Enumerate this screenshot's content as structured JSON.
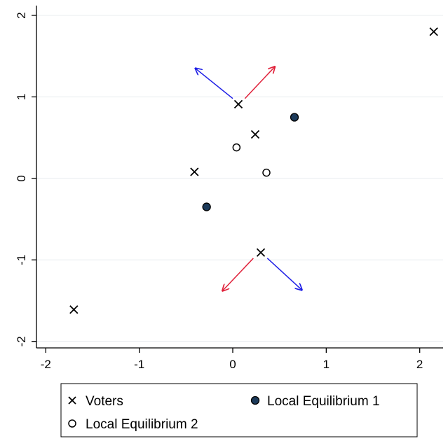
{
  "chart_data": {
    "type": "scatter",
    "title": "",
    "xlabel": "",
    "ylabel": "",
    "xlim": [
      -2.1,
      2.25
    ],
    "ylim": [
      -2.08,
      2.12
    ],
    "xticks": [
      -2,
      -1,
      0,
      1,
      2
    ],
    "yticks": [
      -2,
      -1,
      0,
      1,
      2
    ],
    "grid": "horizontal",
    "legend_position": "bottom",
    "series": [
      {
        "name": "Voters",
        "marker": "x",
        "color": "#000000",
        "points": [
          {
            "x": -1.7,
            "y": -1.61
          },
          {
            "x": -0.41,
            "y": 0.08
          },
          {
            "x": 0.06,
            "y": 0.91
          },
          {
            "x": 0.24,
            "y": 0.54
          },
          {
            "x": 0.3,
            "y": -0.91
          },
          {
            "x": 2.15,
            "y": 1.8
          }
        ]
      },
      {
        "name": "Local Equilibrium 1",
        "marker": "filled-circle",
        "color": "#1c3a5a",
        "points": [
          {
            "x": 0.66,
            "y": 0.75
          },
          {
            "x": -0.28,
            "y": -0.35
          }
        ]
      },
      {
        "name": "Local Equilibrium 2",
        "marker": "hollow-circle",
        "color": "#000000",
        "points": [
          {
            "x": 0.04,
            "y": 0.38
          },
          {
            "x": 0.36,
            "y": 0.07
          }
        ]
      }
    ],
    "arrows": [
      {
        "color": "#1f1fe6",
        "from": [
          0.0,
          0.98
        ],
        "to": [
          -0.4,
          1.35
        ]
      },
      {
        "color": "#e0213a",
        "from": [
          0.13,
          0.98
        ],
        "to": [
          0.45,
          1.37
        ]
      },
      {
        "color": "#e0213a",
        "from": [
          0.22,
          -0.98
        ],
        "to": [
          -0.11,
          -1.38
        ]
      },
      {
        "color": "#1f1fe6",
        "from": [
          0.37,
          -0.98
        ],
        "to": [
          0.74,
          -1.37
        ]
      }
    ]
  }
}
